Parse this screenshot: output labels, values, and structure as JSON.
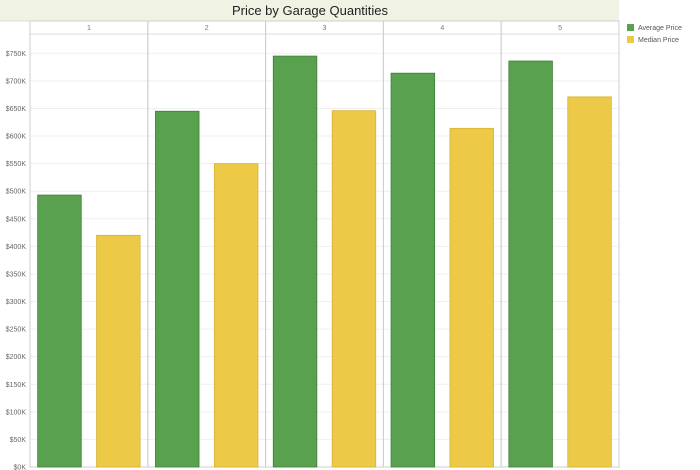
{
  "chart_data": {
    "type": "bar",
    "title": "Price by Garage Quantities",
    "categories": [
      "1",
      "2",
      "3",
      "4",
      "5"
    ],
    "series": [
      {
        "name": "Average Price",
        "color": "#59a14f",
        "values": [
          493000,
          645000,
          745000,
          714000,
          736000
        ]
      },
      {
        "name": "Median Price",
        "color": "#edc948",
        "values": [
          420000,
          550000,
          646000,
          614000,
          671000
        ]
      }
    ],
    "yticks": [
      "$0K",
      "$50K",
      "$100K",
      "$150K",
      "$200K",
      "$250K",
      "$300K",
      "$350K",
      "$400K",
      "$450K",
      "$500K",
      "$550K",
      "$600K",
      "$650K",
      "$700K",
      "$750K"
    ],
    "ylim": [
      0,
      785000
    ],
    "grid": true,
    "legend": "right"
  }
}
